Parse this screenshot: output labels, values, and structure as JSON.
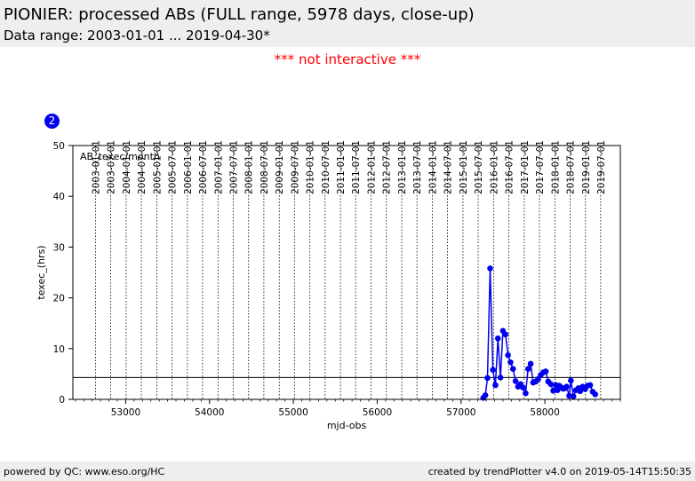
{
  "header": {
    "title": "PIONIER: processed ABs (FULL range, 5978 days, close-up)",
    "subtitle": "Data range: 2003-01-01 ... 2019-04-30*"
  },
  "notice": "*** not interactive ***",
  "badge": "2",
  "footer": {
    "left": "powered by QC: www.eso.org/HC",
    "right": "created by trendPlotter v4.0 on 2019-05-14T15:50:35"
  },
  "colors": {
    "series": "#0000ee",
    "notice": "#ff0000",
    "header_bg": "#eeeeee"
  },
  "chart_data": {
    "type": "line",
    "xlabel": "mjd-obs",
    "ylabel": "texec_(hrs)",
    "annotation": "AB_texec/month",
    "xlim": [
      52370,
      58900
    ],
    "ylim": [
      0,
      50
    ],
    "x_ticks": [
      53000,
      54000,
      55000,
      56000,
      57000,
      58000
    ],
    "y_ticks": [
      0,
      10,
      20,
      30,
      40,
      50
    ],
    "reference_line_y": 4.3,
    "date_ticks": [
      {
        "mjd": 52640,
        "label": "2003-01-01"
      },
      {
        "mjd": 52821,
        "label": "2003-07-01"
      },
      {
        "mjd": 53005,
        "label": "2004-01-01"
      },
      {
        "mjd": 53187,
        "label": "2004-07-01"
      },
      {
        "mjd": 53371,
        "label": "2005-01-01"
      },
      {
        "mjd": 53552,
        "label": "2005-07-01"
      },
      {
        "mjd": 53736,
        "label": "2006-01-01"
      },
      {
        "mjd": 53917,
        "label": "2006-07-01"
      },
      {
        "mjd": 54101,
        "label": "2007-01-01"
      },
      {
        "mjd": 54282,
        "label": "2007-07-01"
      },
      {
        "mjd": 54466,
        "label": "2008-01-01"
      },
      {
        "mjd": 54648,
        "label": "2008-07-01"
      },
      {
        "mjd": 54832,
        "label": "2009-01-01"
      },
      {
        "mjd": 55013,
        "label": "2009-07-01"
      },
      {
        "mjd": 55197,
        "label": "2010-01-01"
      },
      {
        "mjd": 55378,
        "label": "2010-07-01"
      },
      {
        "mjd": 55562,
        "label": "2011-01-01"
      },
      {
        "mjd": 55743,
        "label": "2011-07-01"
      },
      {
        "mjd": 55927,
        "label": "2012-01-01"
      },
      {
        "mjd": 56109,
        "label": "2012-07-01"
      },
      {
        "mjd": 56293,
        "label": "2013-01-01"
      },
      {
        "mjd": 56474,
        "label": "2013-07-01"
      },
      {
        "mjd": 56658,
        "label": "2014-01-01"
      },
      {
        "mjd": 56839,
        "label": "2014-07-01"
      },
      {
        "mjd": 57023,
        "label": "2015-01-01"
      },
      {
        "mjd": 57204,
        "label": "2015-07-01"
      },
      {
        "mjd": 57388,
        "label": "2016-01-01"
      },
      {
        "mjd": 57570,
        "label": "2016-07-01"
      },
      {
        "mjd": 57754,
        "label": "2017-01-01"
      },
      {
        "mjd": 57935,
        "label": "2017-07-01"
      },
      {
        "mjd": 58119,
        "label": "2018-01-01"
      },
      {
        "mjd": 58300,
        "label": "2018-07-01"
      },
      {
        "mjd": 58484,
        "label": "2019-01-01"
      },
      {
        "mjd": 58665,
        "label": "2019-07-01"
      }
    ],
    "series": [
      {
        "x": [
          57265,
          57290,
          57315,
          57347,
          57380,
          57410,
          57440,
          57470,
          57500,
          57530,
          57560,
          57590,
          57620,
          57650,
          57680,
          57710,
          57740,
          57770,
          57800,
          57830,
          57860,
          57890,
          57920,
          57950,
          57980,
          58010,
          58040,
          58070,
          58100,
          58130,
          58150,
          58170,
          58200,
          58220,
          58240,
          58260,
          58290,
          58310,
          58340,
          58370,
          58400,
          58420,
          58450,
          58480,
          58510,
          58540,
          58570,
          58600
        ],
        "y": [
          0.3,
          0.8,
          4.2,
          25.8,
          5.8,
          2.8,
          12.0,
          4.3,
          13.5,
          12.8,
          8.7,
          7.3,
          6.0,
          3.6,
          2.5,
          3.0,
          2.3,
          1.2,
          6.0,
          7.0,
          3.3,
          3.5,
          4.0,
          4.8,
          5.3,
          5.5,
          3.5,
          3.0,
          1.7,
          2.8,
          1.8,
          2.7,
          2.3,
          2.1,
          2.2,
          2.5,
          0.7,
          3.7,
          0.6,
          1.8,
          2.2,
          1.6,
          2.5,
          2.0,
          2.7,
          2.8,
          1.5,
          1.0
        ]
      }
    ]
  }
}
